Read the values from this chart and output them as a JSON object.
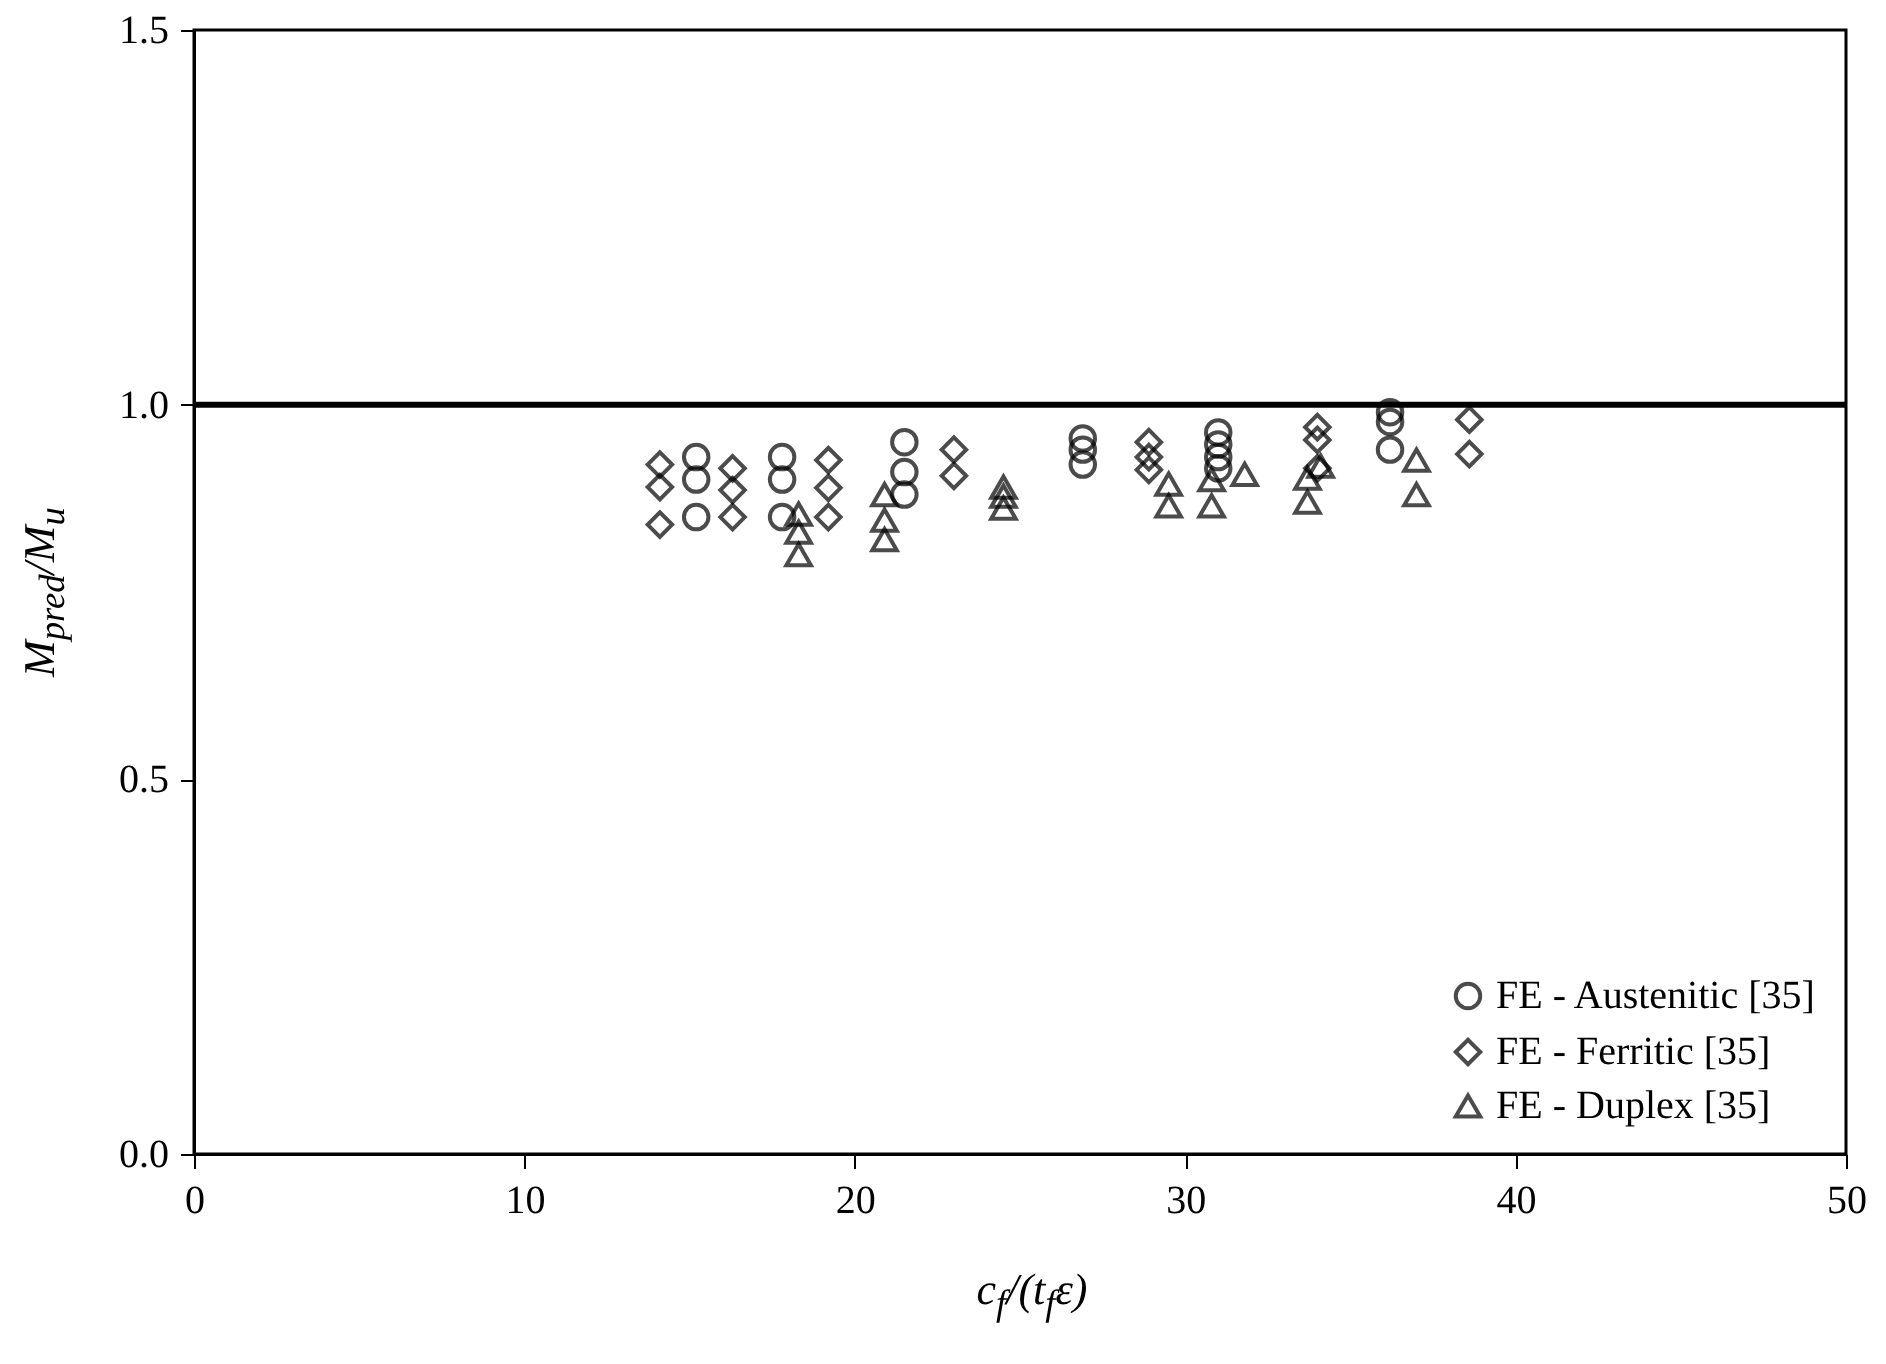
{
  "chart_data": {
    "type": "scatter",
    "xlabel": "c$_{f}$/(t$_{f}$ε)",
    "ylabel": "M$_{pred}$/M$_{u}$",
    "xlim": [
      0,
      50
    ],
    "xticks": [
      0,
      10,
      20,
      30,
      40,
      50
    ],
    "ylim": [
      0,
      1.5
    ],
    "yticks": [
      {
        "value": 0,
        "label": "0.0"
      },
      {
        "value": 0.5,
        "label": "0.5"
      },
      {
        "value": 1,
        "label": "1.0"
      },
      {
        "value": 1.5,
        "label": "1.5"
      }
    ],
    "grid": false,
    "legend": "bottom right",
    "ref_lines": [
      {
        "axis": "y",
        "value": 1,
        "color": "#000000",
        "line_style": "solid"
      }
    ],
    "series": [
      {
        "name": "FE - Austenitic [35]",
        "color": "#000000",
        "marker": "circle",
        "x": [
          15.2,
          15.2,
          15.2,
          17.8,
          17.8,
          17.8,
          21.5,
          21.5,
          21.5,
          26.9,
          26.9,
          26.9,
          31.0,
          31.0,
          31.0,
          31.0,
          36.2,
          36.2,
          36.2
        ],
        "values": [
          0.93,
          0.9,
          0.85,
          0.93,
          0.9,
          0.85,
          0.95,
          0.91,
          0.88,
          0.955,
          0.94,
          0.92,
          0.963,
          0.947,
          0.93,
          0.915,
          0.99,
          0.977,
          0.94
        ]
      },
      {
        "name": "FE - Ferritic [35]",
        "color": "#000000",
        "marker": "diamond",
        "x": [
          14.1,
          14.1,
          14.1,
          16.3,
          16.3,
          16.3,
          19.2,
          19.2,
          19.2,
          23.0,
          23.0,
          28.9,
          28.9,
          28.9,
          34.0,
          34.0,
          34.0,
          38.6,
          38.6
        ],
        "values": [
          0.92,
          0.89,
          0.84,
          0.915,
          0.886,
          0.85,
          0.926,
          0.889,
          0.85,
          0.94,
          0.905,
          0.95,
          0.93,
          0.913,
          0.97,
          0.953,
          0.915,
          0.98,
          0.934
        ]
      },
      {
        "name": "FE - Duplex [35]",
        "color": "#000000",
        "marker": "triangle",
        "x": [
          18.3,
          18.3,
          18.3,
          20.9,
          20.9,
          20.9,
          24.5,
          24.5,
          24.5,
          29.5,
          29.5,
          30.8,
          30.8,
          31.8,
          33.7,
          33.7,
          34.1,
          37.0,
          37.0
        ],
        "values": [
          0.854,
          0.83,
          0.8,
          0.88,
          0.846,
          0.82,
          0.89,
          0.878,
          0.862,
          0.894,
          0.865,
          0.9,
          0.865,
          0.907,
          0.902,
          0.87,
          0.918,
          0.926,
          0.88
        ]
      }
    ]
  }
}
